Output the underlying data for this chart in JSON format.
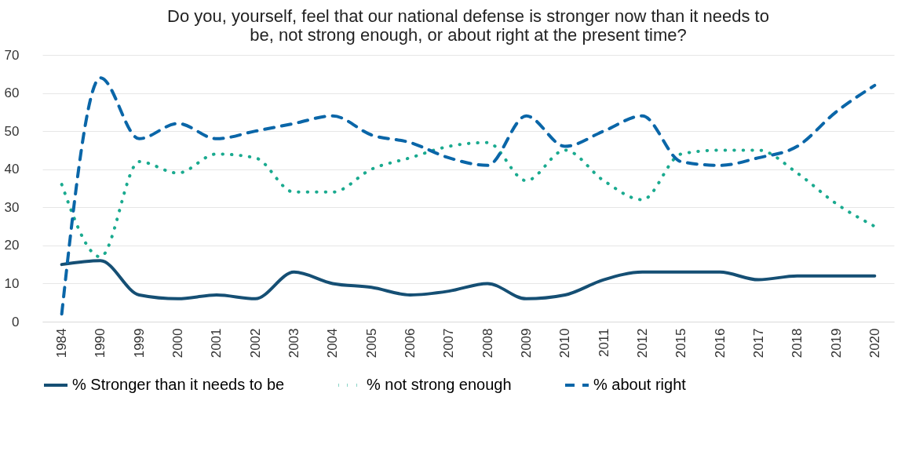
{
  "chart_data": {
    "type": "line",
    "title": [
      "Do you, yourself, feel that our national defense is stronger now than it needs to",
      "be, not strong enough, or about right at the present time?"
    ],
    "categories": [
      "1984",
      "1990",
      "1999",
      "2000",
      "2001",
      "2002",
      "2003",
      "2004",
      "2005",
      "2006",
      "2007",
      "2008",
      "2009",
      "2010",
      "2011",
      "2012",
      "2015",
      "2016",
      "2017",
      "2018",
      "2019",
      "2020"
    ],
    "series": [
      {
        "name": "% Stronger than it needs to be",
        "color": "#154f74",
        "line_style": "solid",
        "values": [
          15,
          16,
          7,
          6,
          7,
          6,
          13,
          10,
          9,
          7,
          8,
          10,
          6,
          7,
          11,
          13,
          13,
          13,
          11,
          12,
          12,
          12
        ]
      },
      {
        "name": "% not strong enough",
        "color": "#1aaa8f",
        "line_style": "dotted",
        "values": [
          36,
          17,
          42,
          39,
          44,
          43,
          34,
          34,
          40,
          43,
          46,
          47,
          37,
          45,
          37,
          32,
          44,
          45,
          45,
          39,
          31,
          25
        ]
      },
      {
        "name": "% about right",
        "color": "#0a66a8",
        "line_style": "dashed",
        "values": [
          2,
          64,
          48,
          52,
          48,
          50,
          52,
          54,
          49,
          47,
          43,
          41,
          54,
          46,
          50,
          54,
          42,
          41,
          43,
          46,
          55,
          62
        ]
      }
    ],
    "ylim": [
      0,
      70
    ],
    "yticks": [
      0,
      10,
      20,
      30,
      40,
      50,
      60,
      70
    ],
    "grid": "y",
    "legend": "bottom",
    "marker": "none"
  }
}
